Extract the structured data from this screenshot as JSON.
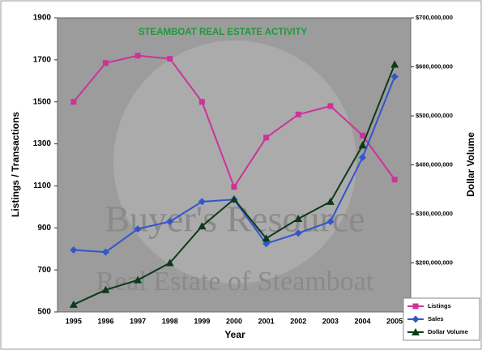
{
  "chart_data": {
    "type": "line",
    "title": "STEAMBOAT REAL ESTATE ACTIVITY",
    "watermark": [
      "Buyer's Resource",
      "Real Estate of Steamboat"
    ],
    "xlabel": "Year",
    "ylabel": "Listings / Transactions",
    "y2label": "Dollar Volume",
    "categories": [
      "1995",
      "1996",
      "1997",
      "1998",
      "1999",
      "2000",
      "2001",
      "2002",
      "2003",
      "2004",
      "2005"
    ],
    "series": [
      {
        "name": "Listings",
        "color": "#cc3399",
        "marker": "square",
        "values": [
          1500,
          1685,
          1720,
          1705,
          1500,
          1095,
          1330,
          1440,
          1480,
          1340,
          1130
        ]
      },
      {
        "name": "Sales",
        "color": "#3355cc",
        "marker": "diamond",
        "values": [
          795,
          785,
          895,
          930,
          1025,
          1035,
          825,
          875,
          930,
          1235,
          1620
        ]
      },
      {
        "name": "Dollar Volume",
        "color": "#0d3a1a",
        "marker": "triangle",
        "axis": "y2",
        "values": [
          115000000,
          145000000,
          165000000,
          200000000,
          275000000,
          330000000,
          250000000,
          290000000,
          325000000,
          440000000,
          605000000
        ]
      }
    ],
    "ylim": [
      500,
      1900
    ],
    "yticks": [
      500,
      700,
      900,
      1100,
      1300,
      1500,
      1700,
      1900
    ],
    "y2lim": [
      100000000,
      700000000
    ],
    "y2ticks": [
      {
        "value": 200000000,
        "label": "$200,000,000"
      },
      {
        "value": 300000000,
        "label": "$300,000,000"
      },
      {
        "value": 400000000,
        "label": "$400,000,000"
      },
      {
        "value": 500000000,
        "label": "$500,000,000"
      },
      {
        "value": 600000000,
        "label": "$600,000,000"
      },
      {
        "value": 700000000,
        "label": "$700,000,000"
      }
    ],
    "grid": false,
    "legend": "lower right"
  }
}
